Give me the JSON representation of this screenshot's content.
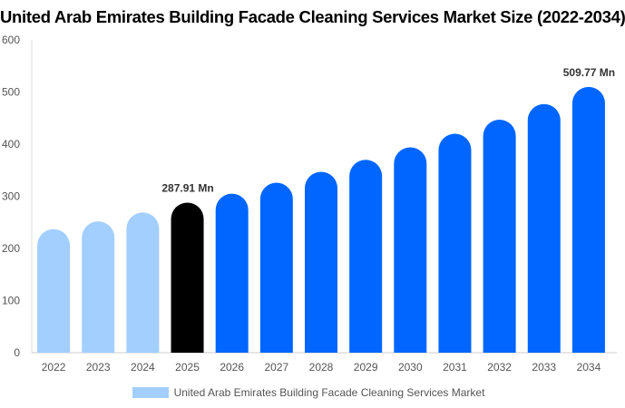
{
  "chart_data": {
    "type": "bar",
    "title": "United Arab Emirates Building Facade Cleaning Services Market Size (2022-2034)",
    "categories": [
      "2022",
      "2023",
      "2024",
      "2025",
      "2026",
      "2027",
      "2028",
      "2029",
      "2030",
      "2031",
      "2032",
      "2033",
      "2034"
    ],
    "series": [
      {
        "name": "United Arab Emirates Building Facade Cleaning Services Market",
        "values": [
          237,
          252,
          269,
          287.91,
          305,
          326,
          347,
          370,
          394,
          420,
          447,
          477,
          509.77
        ]
      }
    ],
    "data_labels": [
      {
        "index": 3,
        "text": "287.91 Mn"
      },
      {
        "index": 12,
        "text": "509.77 Mn"
      }
    ],
    "ylim": [
      0,
      600
    ],
    "yticks": [
      0,
      100,
      200,
      300,
      400,
      500,
      600
    ],
    "xlabel": "",
    "ylabel": "",
    "grid": false,
    "legend": "bottom",
    "colors": {
      "historical": "#a3cfff",
      "current": "#000000",
      "forecast": "#0066ff"
    }
  }
}
